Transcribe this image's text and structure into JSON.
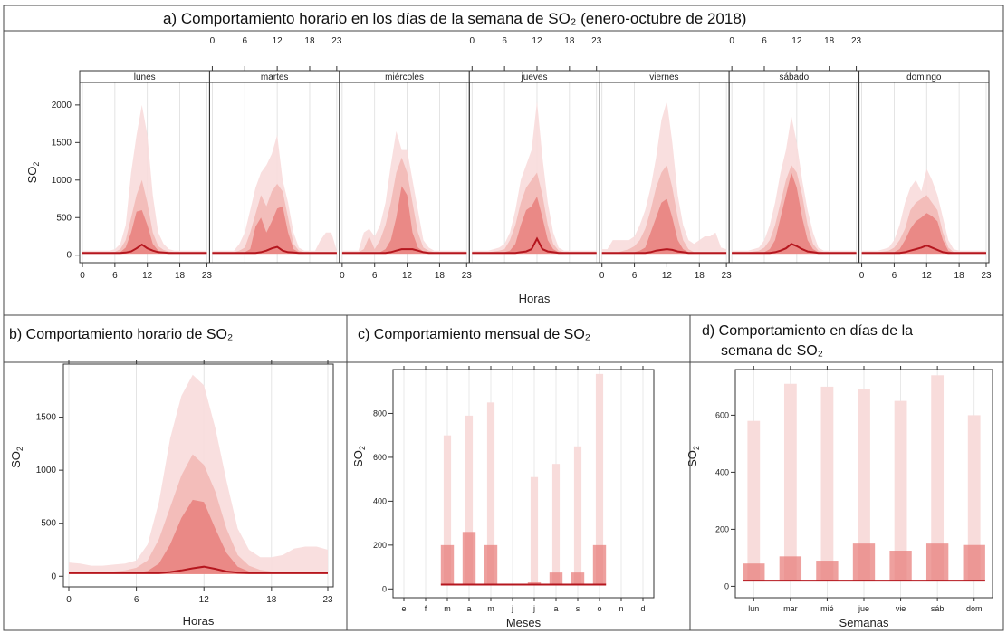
{
  "figure_titles": {
    "a": "a)    Comportamiento horario en los días de la semana de SO₂ (enero-octubre de 2018)",
    "b": "b) Comportamiento horario de SO₂",
    "c": "c) Comportamiento mensual de SO₂",
    "d1": "d) Comportamiento en días de la",
    "d2": "semana de SO₂"
  },
  "colors": {
    "mean_line": "#b5161e",
    "band_q": "#e8807d",
    "band_p": "#f2b7b4",
    "band_max": "#f8dcdb",
    "frame": "#333333",
    "strip_bg": "#ffffff"
  },
  "chart_data": [
    {
      "id": "a",
      "type": "area",
      "title": "Comportamiento horario en los días de la semana de SO₂ (enero-octubre de 2018)",
      "xlabel": "Horas",
      "ylabel": "SO₂",
      "ylim": [
        -100,
        2300
      ],
      "yticks": [
        0,
        500,
        1000,
        1500,
        2000
      ],
      "xticks": [
        0,
        6,
        12,
        18,
        23
      ],
      "days": [
        "lunes",
        "martes",
        "miércoles",
        "jueves",
        "viernes",
        "sábado",
        "domingo"
      ],
      "grid": true,
      "series": [
        {
          "day": "lunes",
          "mean": [
            30,
            30,
            30,
            30,
            30,
            30,
            30,
            30,
            35,
            50,
            90,
            140,
            90,
            60,
            40,
            35,
            30,
            30,
            30,
            30,
            30,
            30,
            30,
            30
          ],
          "q": [
            30,
            30,
            30,
            30,
            30,
            30,
            30,
            40,
            100,
            300,
            580,
            600,
            400,
            150,
            60,
            40,
            35,
            30,
            30,
            30,
            30,
            30,
            30,
            30
          ],
          "p": [
            40,
            40,
            40,
            40,
            40,
            40,
            45,
            80,
            200,
            500,
            800,
            1000,
            700,
            300,
            120,
            70,
            50,
            40,
            40,
            40,
            40,
            40,
            40,
            40
          ],
          "max": [
            60,
            60,
            60,
            60,
            60,
            60,
            80,
            150,
            400,
            1100,
            1600,
            2000,
            1600,
            800,
            300,
            150,
            80,
            60,
            60,
            60,
            60,
            60,
            60,
            60
          ]
        },
        {
          "day": "martes",
          "mean": [
            30,
            30,
            30,
            30,
            30,
            30,
            30,
            30,
            30,
            40,
            60,
            90,
            110,
            60,
            40,
            35,
            30,
            30,
            30,
            30,
            30,
            30,
            30,
            30
          ],
          "q": [
            30,
            30,
            30,
            30,
            30,
            30,
            40,
            80,
            380,
            500,
            300,
            450,
            620,
            650,
            300,
            80,
            40,
            30,
            30,
            30,
            30,
            30,
            30,
            30
          ],
          "p": [
            40,
            40,
            40,
            40,
            40,
            60,
            100,
            300,
            550,
            800,
            650,
            850,
            950,
            850,
            500,
            150,
            60,
            40,
            40,
            40,
            40,
            40,
            40,
            40
          ],
          "max": [
            60,
            60,
            60,
            60,
            60,
            150,
            300,
            600,
            900,
            1100,
            1200,
            1350,
            1600,
            1000,
            700,
            300,
            100,
            60,
            60,
            60,
            200,
            300,
            300,
            60
          ]
        },
        {
          "day": "miércoles",
          "mean": [
            30,
            30,
            30,
            30,
            30,
            30,
            30,
            30,
            30,
            40,
            60,
            80,
            80,
            80,
            60,
            40,
            30,
            30,
            30,
            30,
            30,
            30,
            30,
            30
          ],
          "q": [
            30,
            30,
            30,
            30,
            30,
            30,
            30,
            40,
            80,
            200,
            500,
            920,
            800,
            300,
            100,
            50,
            40,
            30,
            30,
            30,
            30,
            30,
            30,
            30
          ],
          "p": [
            40,
            40,
            40,
            40,
            80,
            250,
            80,
            200,
            400,
            700,
            1100,
            1300,
            1100,
            700,
            300,
            100,
            60,
            40,
            40,
            40,
            40,
            40,
            40,
            40
          ],
          "max": [
            60,
            60,
            60,
            60,
            300,
            350,
            250,
            400,
            700,
            1200,
            1650,
            1400,
            1400,
            1000,
            600,
            200,
            100,
            60,
            60,
            60,
            60,
            60,
            60,
            60
          ]
        },
        {
          "day": "jueves",
          "mean": [
            30,
            30,
            30,
            30,
            30,
            30,
            30,
            30,
            30,
            40,
            50,
            80,
            220,
            80,
            50,
            40,
            30,
            30,
            30,
            30,
            30,
            30,
            30,
            30
          ],
          "q": [
            30,
            30,
            30,
            30,
            30,
            30,
            40,
            60,
            150,
            400,
            600,
            650,
            780,
            500,
            200,
            80,
            40,
            30,
            30,
            30,
            30,
            30,
            30,
            30
          ],
          "p": [
            40,
            40,
            40,
            40,
            50,
            60,
            80,
            200,
            400,
            700,
            900,
            1000,
            1100,
            800,
            400,
            150,
            60,
            40,
            40,
            40,
            40,
            40,
            40,
            40
          ],
          "max": [
            60,
            60,
            60,
            60,
            80,
            100,
            150,
            300,
            600,
            1000,
            1200,
            1400,
            2050,
            1300,
            700,
            300,
            100,
            60,
            60,
            60,
            60,
            60,
            60,
            60
          ]
        },
        {
          "day": "viernes",
          "mean": [
            30,
            30,
            30,
            30,
            30,
            30,
            30,
            30,
            30,
            40,
            60,
            70,
            80,
            70,
            50,
            40,
            30,
            30,
            30,
            30,
            30,
            30,
            30,
            30
          ],
          "q": [
            30,
            30,
            30,
            30,
            30,
            30,
            40,
            60,
            100,
            300,
            500,
            700,
            750,
            500,
            200,
            80,
            40,
            30,
            30,
            30,
            30,
            30,
            30,
            30
          ],
          "p": [
            40,
            40,
            40,
            40,
            60,
            80,
            120,
            200,
            350,
            600,
            900,
            1100,
            1200,
            900,
            500,
            200,
            80,
            40,
            40,
            40,
            40,
            40,
            40,
            40
          ],
          "max": [
            80,
            80,
            200,
            200,
            200,
            200,
            250,
            400,
            600,
            900,
            1300,
            1800,
            2050,
            1500,
            800,
            400,
            200,
            150,
            200,
            250,
            250,
            300,
            100,
            80
          ]
        },
        {
          "day": "sábado",
          "mean": [
            30,
            30,
            30,
            30,
            30,
            30,
            30,
            30,
            40,
            60,
            90,
            150,
            120,
            80,
            50,
            40,
            30,
            30,
            30,
            30,
            30,
            30,
            30,
            30
          ],
          "q": [
            30,
            30,
            30,
            30,
            30,
            30,
            40,
            80,
            200,
            500,
            800,
            1100,
            900,
            500,
            200,
            80,
            40,
            30,
            30,
            30,
            30,
            30,
            30,
            30
          ],
          "p": [
            40,
            40,
            40,
            40,
            50,
            60,
            100,
            200,
            400,
            700,
            1000,
            1200,
            1100,
            800,
            400,
            150,
            60,
            40,
            40,
            40,
            40,
            40,
            40,
            40
          ],
          "max": [
            60,
            60,
            60,
            60,
            80,
            100,
            200,
            400,
            700,
            1100,
            1400,
            1850,
            1500,
            1000,
            600,
            300,
            100,
            60,
            60,
            60,
            60,
            60,
            60,
            60
          ]
        },
        {
          "day": "domingo",
          "mean": [
            30,
            30,
            30,
            30,
            30,
            30,
            30,
            30,
            40,
            60,
            80,
            100,
            130,
            100,
            70,
            40,
            30,
            30,
            30,
            30,
            30,
            30,
            30,
            30
          ],
          "q": [
            30,
            30,
            30,
            30,
            30,
            30,
            40,
            80,
            200,
            350,
            450,
            500,
            560,
            520,
            450,
            200,
            60,
            30,
            30,
            30,
            30,
            30,
            30,
            30
          ],
          "p": [
            40,
            40,
            40,
            40,
            50,
            60,
            100,
            200,
            350,
            600,
            700,
            750,
            800,
            700,
            600,
            300,
            100,
            40,
            40,
            40,
            40,
            40,
            40,
            40
          ],
          "max": [
            60,
            60,
            60,
            60,
            80,
            100,
            200,
            400,
            700,
            900,
            1000,
            850,
            1150,
            1000,
            800,
            500,
            200,
            80,
            60,
            60,
            60,
            60,
            60,
            60
          ]
        }
      ]
    },
    {
      "id": "b",
      "type": "area",
      "title": "Comportamiento horario de SO₂",
      "xlabel": "Horas",
      "ylabel": "SO₂",
      "xticks": [
        0,
        6,
        12,
        18,
        23
      ],
      "yticks": [
        0,
        500,
        1000,
        1500
      ],
      "ylim": [
        -100,
        2000
      ],
      "grid": true,
      "x": [
        0,
        1,
        2,
        3,
        4,
        5,
        6,
        7,
        8,
        9,
        10,
        11,
        12,
        13,
        14,
        15,
        16,
        17,
        18,
        19,
        20,
        21,
        22,
        23
      ],
      "mean": [
        30,
        30,
        30,
        30,
        30,
        30,
        30,
        30,
        30,
        40,
        55,
        75,
        90,
        70,
        45,
        35,
        30,
        30,
        30,
        30,
        30,
        30,
        30,
        30
      ],
      "q": [
        30,
        30,
        30,
        30,
        30,
        30,
        35,
        50,
        120,
        300,
        550,
        720,
        700,
        450,
        220,
        90,
        45,
        35,
        30,
        30,
        30,
        30,
        30,
        30
      ],
      "p": [
        40,
        40,
        40,
        40,
        45,
        55,
        80,
        150,
        350,
        650,
        950,
        1150,
        1050,
        800,
        450,
        200,
        100,
        60,
        45,
        40,
        40,
        40,
        40,
        40
      ],
      "max": [
        130,
        120,
        100,
        100,
        110,
        120,
        150,
        300,
        700,
        1300,
        1700,
        1900,
        1800,
        1400,
        900,
        450,
        250,
        180,
        180,
        200,
        260,
        280,
        280,
        250
      ]
    },
    {
      "id": "c",
      "type": "bar",
      "title": "Comportamiento mensual de SO₂",
      "xlabel": "Meses",
      "ylabel": "SO₂",
      "categories": [
        "e",
        "f",
        "m",
        "a",
        "m",
        "j",
        "j",
        "a",
        "s",
        "o",
        "n",
        "d"
      ],
      "mean": [
        null,
        null,
        200,
        260,
        200,
        null,
        30,
        75,
        75,
        200,
        null,
        null
      ],
      "upper": [
        null,
        null,
        700,
        790,
        850,
        null,
        510,
        570,
        650,
        980,
        null,
        null
      ],
      "baseline": 20,
      "ylim": [
        -40,
        1000
      ],
      "yticks": [
        0,
        200,
        400,
        600,
        800
      ],
      "grid": true
    },
    {
      "id": "d",
      "type": "bar",
      "title": "Comportamiento en días de la semana de SO₂",
      "xlabel": "Semanas",
      "ylabel": "SO₂",
      "categories": [
        "lun",
        "mar",
        "mié",
        "jue",
        "vie",
        "sáb",
        "dom"
      ],
      "mean": [
        80,
        105,
        90,
        150,
        125,
        150,
        145
      ],
      "upper": [
        580,
        710,
        700,
        690,
        650,
        740,
        600
      ],
      "baseline": 20,
      "ylim": [
        -40,
        760
      ],
      "yticks": [
        0,
        200,
        400,
        600
      ],
      "grid": true
    }
  ]
}
